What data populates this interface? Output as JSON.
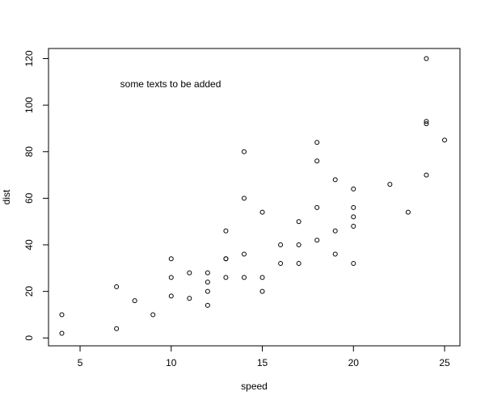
{
  "chart_data": {
    "type": "scatter",
    "title": "",
    "xlabel": "speed",
    "ylabel": "dist",
    "xlim": [
      4,
      25
    ],
    "ylim": [
      2,
      120
    ],
    "xticks": [
      5,
      10,
      15,
      20,
      25
    ],
    "yticks": [
      0,
      20,
      40,
      60,
      80,
      100,
      120
    ],
    "grid": false,
    "marker": "open-circle",
    "annotation": {
      "text": "some texts to be added",
      "x": 7.2,
      "y": 109
    },
    "points": [
      [
        4,
        2
      ],
      [
        4,
        10
      ],
      [
        7,
        4
      ],
      [
        7,
        22
      ],
      [
        8,
        16
      ],
      [
        9,
        10
      ],
      [
        10,
        18
      ],
      [
        10,
        26
      ],
      [
        10,
        34
      ],
      [
        11,
        17
      ],
      [
        11,
        28
      ],
      [
        12,
        14
      ],
      [
        12,
        20
      ],
      [
        12,
        24
      ],
      [
        12,
        28
      ],
      [
        13,
        26
      ],
      [
        13,
        34
      ],
      [
        13,
        34
      ],
      [
        13,
        46
      ],
      [
        14,
        26
      ],
      [
        14,
        36
      ],
      [
        14,
        60
      ],
      [
        14,
        80
      ],
      [
        15,
        20
      ],
      [
        15,
        26
      ],
      [
        15,
        54
      ],
      [
        16,
        32
      ],
      [
        16,
        40
      ],
      [
        17,
        32
      ],
      [
        17,
        40
      ],
      [
        17,
        50
      ],
      [
        18,
        42
      ],
      [
        18,
        56
      ],
      [
        18,
        76
      ],
      [
        18,
        84
      ],
      [
        19,
        36
      ],
      [
        19,
        46
      ],
      [
        19,
        68
      ],
      [
        20,
        32
      ],
      [
        20,
        48
      ],
      [
        20,
        52
      ],
      [
        20,
        56
      ],
      [
        20,
        64
      ],
      [
        22,
        66
      ],
      [
        23,
        54
      ],
      [
        24,
        70
      ],
      [
        24,
        92
      ],
      [
        24,
        93
      ],
      [
        24,
        120
      ],
      [
        25,
        85
      ]
    ]
  }
}
